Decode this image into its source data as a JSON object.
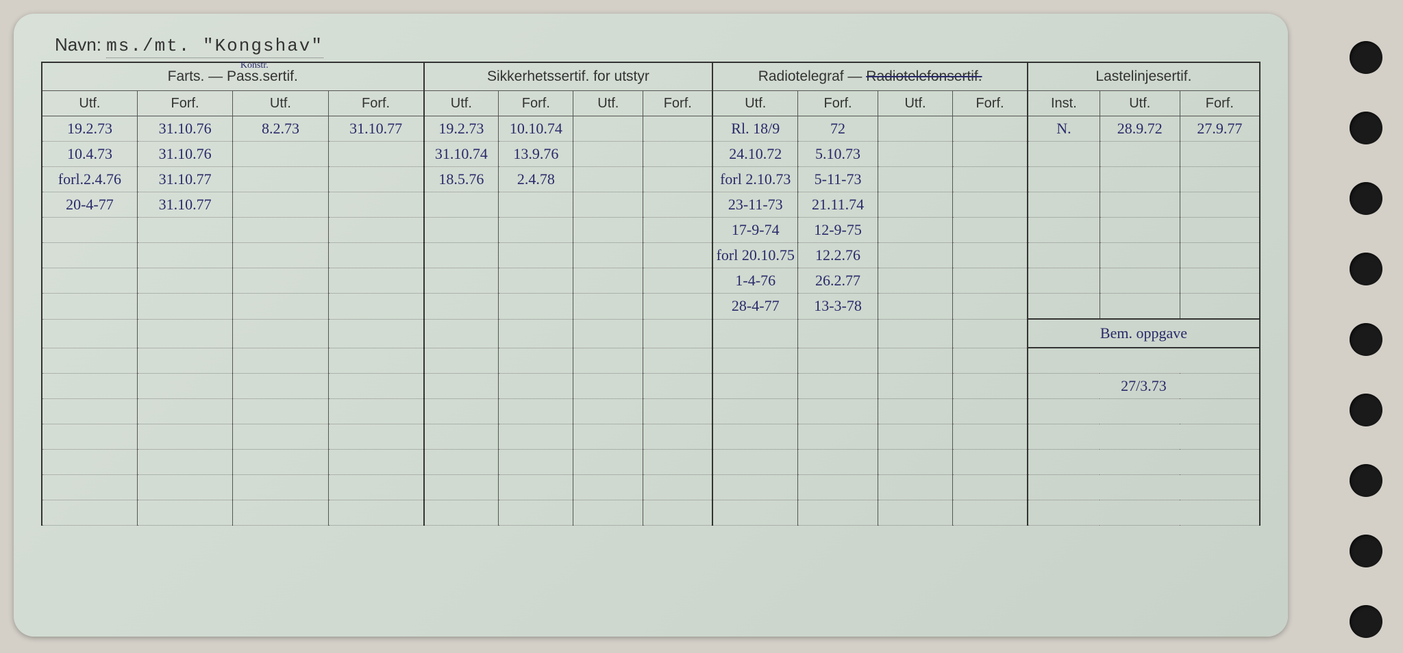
{
  "navn": {
    "label": "Navn:",
    "value": "ms./mt. \"Kongshav\""
  },
  "groups": {
    "farts": {
      "title": "Farts. — Pass.sertif.",
      "annotation": "Konstr."
    },
    "sikkerhet": "Sikkerhetssertif. for utstyr",
    "radio": {
      "title_a": "Radiotelegraf — ",
      "title_b": "Radiotelefonsertif."
    },
    "laste": "Lastelinjesertif.",
    "bem": "Bem. oppgave"
  },
  "sub": {
    "utf": "Utf.",
    "forf": "Forf.",
    "inst": "Inst."
  },
  "rows": [
    {
      "f1u": "19.2.73",
      "f1f": "31.10.76",
      "f2u": "8.2.73",
      "f2f": "31.10.77",
      "s1u": "19.2.73",
      "s1f": "10.10.74",
      "s2u": "",
      "s2f": "",
      "r1u": "Rl. 18/9",
      "r1f": "72",
      "r2u": "",
      "r2f": "",
      "li": "N.",
      "lu": "28.9.72",
      "lf": "27.9.77"
    },
    {
      "f1u": "10.4.73",
      "f1f": "31.10.76",
      "f2u": "",
      "f2f": "",
      "s1u": "31.10.74",
      "s1f": "13.9.76",
      "s2u": "",
      "s2f": "",
      "r1u": "24.10.72",
      "r1f": "5.10.73",
      "r2u": "",
      "r2f": "",
      "li": "",
      "lu": "",
      "lf": ""
    },
    {
      "f1u": "forl.2.4.76",
      "f1f": "31.10.77",
      "f2u": "",
      "f2f": "",
      "s1u": "18.5.76",
      "s1f": "2.4.78",
      "s2u": "",
      "s2f": "",
      "r1u": "forl 2.10.73",
      "r1f": "5-11-73",
      "r2u": "",
      "r2f": "",
      "li": "",
      "lu": "",
      "lf": ""
    },
    {
      "f1u": "20-4-77",
      "f1f": "31.10.77",
      "f2u": "",
      "f2f": "",
      "s1u": "",
      "s1f": "",
      "s2u": "",
      "s2f": "",
      "r1u": "23-11-73",
      "r1f": "21.11.74",
      "r2u": "",
      "r2f": "",
      "li": "",
      "lu": "",
      "lf": ""
    },
    {
      "f1u": "",
      "f1f": "",
      "f2u": "",
      "f2f": "",
      "s1u": "",
      "s1f": "",
      "s2u": "",
      "s2f": "",
      "r1u": "17-9-74",
      "r1f": "12-9-75",
      "r2u": "",
      "r2f": "",
      "li": "",
      "lu": "",
      "lf": ""
    },
    {
      "f1u": "",
      "f1f": "",
      "f2u": "",
      "f2f": "",
      "s1u": "",
      "s1f": "",
      "s2u": "",
      "s2f": "",
      "r1u": "forl 20.10.75",
      "r1f": "12.2.76",
      "r2u": "",
      "r2f": "",
      "li": "",
      "lu": "",
      "lf": ""
    },
    {
      "f1u": "",
      "f1f": "",
      "f2u": "",
      "f2f": "",
      "s1u": "",
      "s1f": "",
      "s2u": "",
      "s2f": "",
      "r1u": "1-4-76",
      "r1f": "26.2.77",
      "r2u": "",
      "r2f": "",
      "li": "",
      "lu": "",
      "lf": ""
    },
    {
      "f1u": "",
      "f1f": "",
      "f2u": "",
      "f2f": "",
      "s1u": "",
      "s1f": "",
      "s2u": "",
      "s2f": "",
      "r1u": "28-4-77",
      "r1f": "13-3-78",
      "r2u": "",
      "r2f": "",
      "li": "",
      "lu": "",
      "lf": ""
    }
  ],
  "bem_rows": [
    "",
    "27/3.73",
    "",
    "",
    "",
    "",
    "",
    ""
  ],
  "style": {
    "card_bg": "#d4dcd2",
    "ink": "#2a2a6a",
    "print": "#333333",
    "rule": "#555555",
    "dotted": "#888888",
    "total_rows": 16
  }
}
